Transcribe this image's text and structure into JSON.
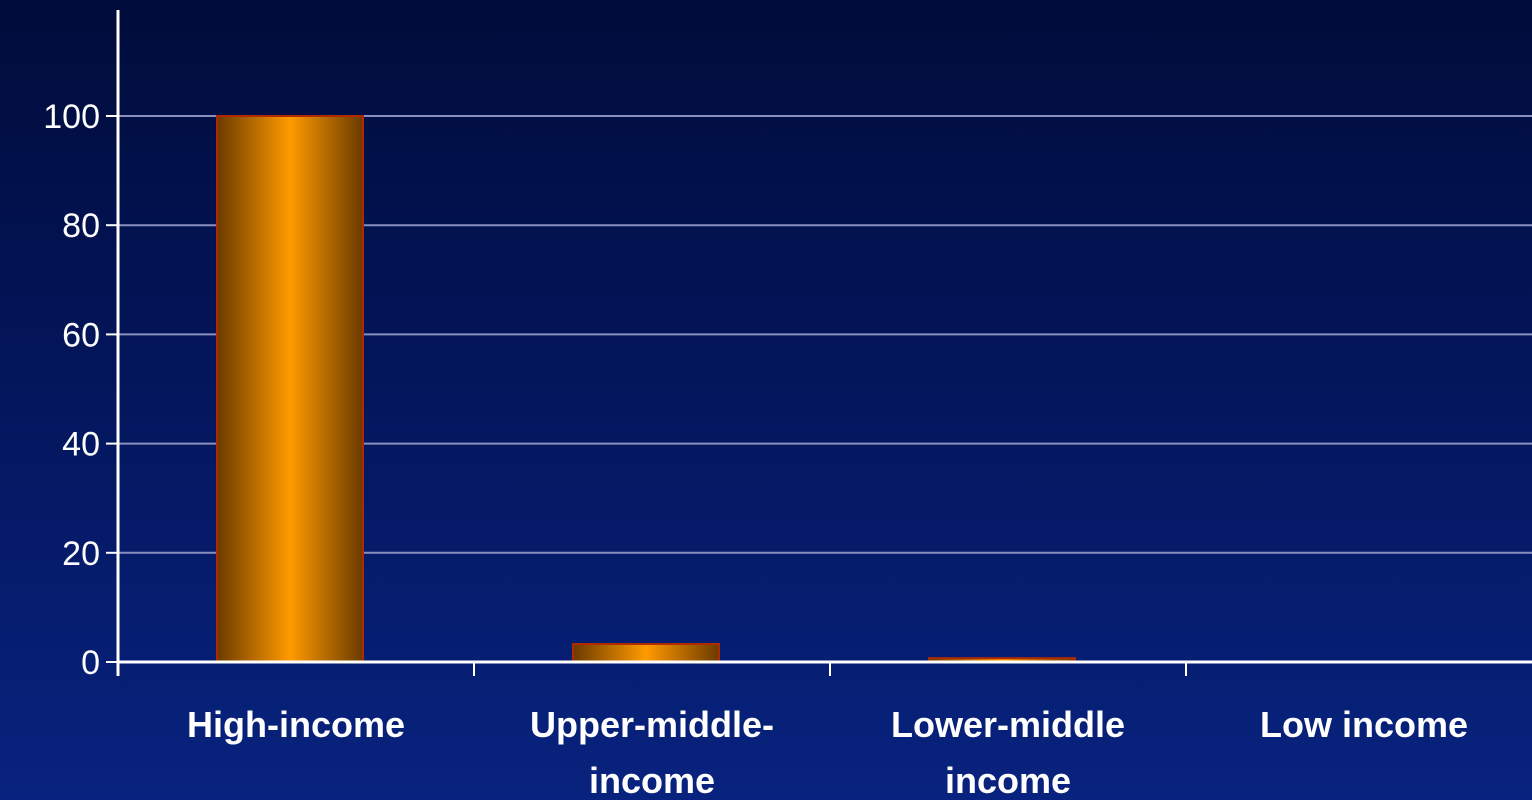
{
  "chart_data": {
    "type": "bar",
    "categories": [
      "High-income",
      "Upper-middle-income",
      "Lower-middle income",
      "Low income"
    ],
    "category_label_lines": [
      [
        "High-income"
      ],
      [
        "Upper-middle-",
        "income"
      ],
      [
        "Lower-middle",
        "income"
      ],
      [
        "Low income"
      ]
    ],
    "values": [
      100,
      3.3,
      0.7,
      0
    ],
    "y_ticks": [
      0,
      20,
      40,
      60,
      80,
      100
    ],
    "ylim": [
      0,
      120
    ],
    "grid": true,
    "colors": {
      "bar_center": "#ff9a00",
      "bar_edge": "#6b3a00",
      "bar_outline": "#b02a00",
      "gridline": "#8a8fbf",
      "axis": "#ffffff"
    }
  }
}
